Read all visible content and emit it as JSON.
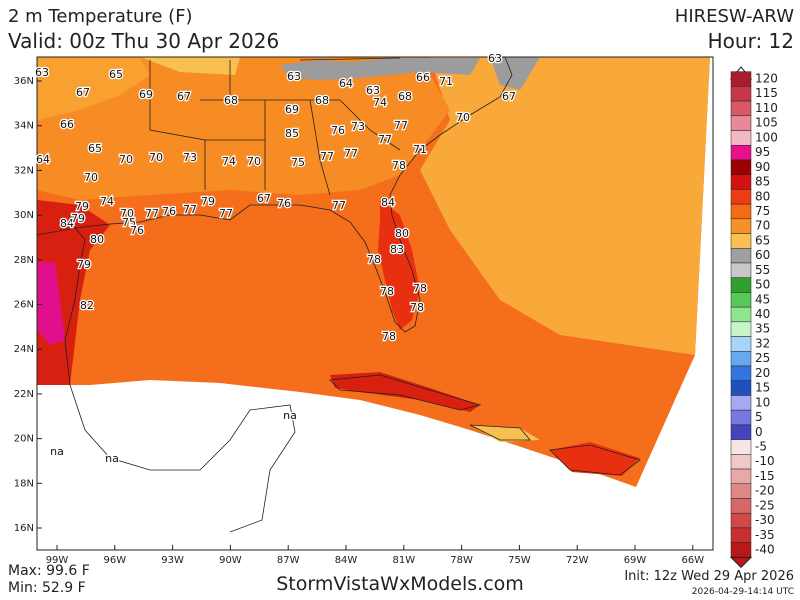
{
  "header": {
    "title": "2 m Temperature (F)",
    "valid": "Valid: 00z Thu 30 Apr 2026",
    "model": "HIRESW-ARW",
    "hour": "Hour: 12"
  },
  "map": {
    "station_values": [
      "63",
      "65",
      "67",
      "69",
      "67",
      "68",
      "63",
      "64",
      "63",
      "66",
      "71",
      "63",
      "67",
      "68",
      "74",
      "68",
      "69",
      "70",
      "66",
      "85",
      "76",
      "73",
      "77",
      "77",
      "65",
      "70",
      "70",
      "73",
      "74",
      "70",
      "75",
      "77",
      "77",
      "71",
      "78",
      "64",
      "70",
      "74",
      "79",
      "70",
      "77",
      "76",
      "77",
      "79",
      "77",
      "67",
      "76",
      "77",
      "84",
      "84",
      "79",
      "75",
      "76",
      "80",
      "80",
      "83",
      "79",
      "78",
      "78",
      "78",
      "78",
      "82",
      "78",
      "na",
      "na",
      "na"
    ],
    "lat_labels": [
      "36N",
      "34N",
      "32N",
      "30N",
      "28N",
      "26N",
      "24N",
      "22N",
      "20N",
      "18N",
      "16N"
    ],
    "lon_labels": [
      "99W",
      "96W",
      "93W",
      "90W",
      "87W",
      "84W",
      "81W",
      "78W",
      "75W",
      "72W",
      "69W",
      "66W"
    ]
  },
  "colorbar": {
    "labels": [
      "120",
      "115",
      "110",
      "105",
      "100",
      "95",
      "90",
      "85",
      "80",
      "75",
      "70",
      "65",
      "60",
      "55",
      "50",
      "45",
      "40",
      "35",
      "32",
      "25",
      "20",
      "15",
      "10",
      "5",
      "0",
      "-5",
      "-10",
      "-15",
      "-20",
      "-25",
      "-30",
      "-35",
      "-40"
    ],
    "colors": [
      "#a81c2c",
      "#c83848",
      "#d85868",
      "#e88898",
      "#f4b8c4",
      "#e8108c",
      "#9c0000",
      "#d41010",
      "#ee3c14",
      "#f66a14",
      "#f8902a",
      "#f8c050",
      "#a0a0a0",
      "#c8c8c8",
      "#30a030",
      "#58c858",
      "#90e490",
      "#c8f4c8",
      "#a8d4f8",
      "#68a8f0",
      "#3474e0",
      "#2050c0",
      "#a8a8f0",
      "#7878e0",
      "#4444c0",
      "#f8e4e4",
      "#f0c8c8",
      "#e8a8a8",
      "#e08888",
      "#d86868",
      "#d04848",
      "#c83030",
      "#b81818"
    ]
  },
  "footer": {
    "max": "Max: 99.6 F",
    "min": "Min: 52.9 F",
    "site": "StormVistaWxModels.com",
    "init": "Init: 12z Wed 29 Apr 2026",
    "timestamp": "2026-04-29-14:14 UTC"
  }
}
